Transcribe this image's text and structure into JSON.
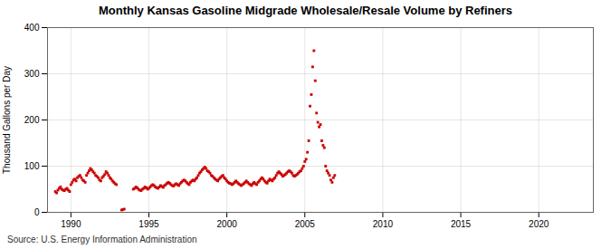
{
  "chart_data": {
    "type": "scatter",
    "title": "Monthly Kansas Gasoline Midgrade Wholesale/Resale Volume by Refiners",
    "ylabel": "Thousand Gallons per Day",
    "annotation": "Source: U.S. Energy Information Administration",
    "color": "#cc0000",
    "marker": "square",
    "grid": true,
    "xlim": [
      1988.5,
      2023.5
    ],
    "ylim": [
      0,
      400
    ],
    "xticks": [
      1990,
      1995,
      2000,
      2005,
      2010,
      2015,
      2020
    ],
    "yticks": [
      0,
      100,
      200,
      300,
      400
    ],
    "x": [
      1989.0,
      1989.083,
      1989.167,
      1989.25,
      1989.333,
      1989.417,
      1989.5,
      1989.583,
      1989.667,
      1989.75,
      1989.833,
      1989.917,
      1990.0,
      1990.083,
      1990.167,
      1990.25,
      1990.333,
      1990.417,
      1990.5,
      1990.583,
      1990.667,
      1990.75,
      1990.833,
      1990.917,
      1991.0,
      1991.083,
      1991.167,
      1991.25,
      1991.333,
      1991.417,
      1991.5,
      1991.583,
      1991.667,
      1991.75,
      1991.833,
      1991.917,
      1992.0,
      1992.083,
      1992.167,
      1992.25,
      1992.333,
      1992.417,
      1992.5,
      1992.583,
      1992.667,
      1992.75,
      1992.833,
      1992.917,
      1993.25,
      1993.333,
      1993.417,
      1994.0,
      1994.083,
      1994.167,
      1994.25,
      1994.333,
      1994.417,
      1994.5,
      1994.583,
      1994.667,
      1994.75,
      1994.833,
      1994.917,
      1995.0,
      1995.083,
      1995.167,
      1995.25,
      1995.333,
      1995.417,
      1995.5,
      1995.583,
      1995.667,
      1995.75,
      1995.833,
      1995.917,
      1996.0,
      1996.083,
      1996.167,
      1996.25,
      1996.333,
      1996.417,
      1996.5,
      1996.583,
      1996.667,
      1996.75,
      1996.833,
      1996.917,
      1997.0,
      1997.083,
      1997.167,
      1997.25,
      1997.333,
      1997.417,
      1997.5,
      1997.583,
      1997.667,
      1997.75,
      1997.833,
      1997.917,
      1998.0,
      1998.083,
      1998.167,
      1998.25,
      1998.333,
      1998.417,
      1998.5,
      1998.583,
      1998.667,
      1998.75,
      1998.833,
      1998.917,
      1999.0,
      1999.083,
      1999.167,
      1999.25,
      1999.333,
      1999.417,
      1999.5,
      1999.583,
      1999.667,
      1999.75,
      1999.833,
      1999.917,
      2000.0,
      2000.083,
      2000.167,
      2000.25,
      2000.333,
      2000.417,
      2000.5,
      2000.583,
      2000.667,
      2000.75,
      2000.833,
      2000.917,
      2001.0,
      2001.083,
      2001.167,
      2001.25,
      2001.333,
      2001.417,
      2001.5,
      2001.583,
      2001.667,
      2001.75,
      2001.833,
      2001.917,
      2002.0,
      2002.083,
      2002.167,
      2002.25,
      2002.333,
      2002.417,
      2002.5,
      2002.583,
      2002.667,
      2002.75,
      2002.833,
      2002.917,
      2003.0,
      2003.083,
      2003.167,
      2003.25,
      2003.333,
      2003.417,
      2003.5,
      2003.583,
      2003.667,
      2003.75,
      2003.833,
      2003.917,
      2004.0,
      2004.083,
      2004.167,
      2004.25,
      2004.333,
      2004.417,
      2004.5,
      2004.583,
      2004.667,
      2004.75,
      2004.833,
      2004.917,
      2005.0,
      2005.083,
      2005.167,
      2005.25,
      2005.333,
      2005.417,
      2005.5,
      2005.583,
      2005.667,
      2005.75,
      2005.833,
      2005.917,
      2006.0,
      2006.083,
      2006.167,
      2006.25,
      2006.333,
      2006.417,
      2006.5,
      2006.583,
      2006.667,
      2006.75,
      2006.833,
      2006.917
    ],
    "values": [
      45,
      42,
      48,
      52,
      55,
      50,
      48,
      47,
      50,
      52,
      48,
      45,
      60,
      65,
      70,
      72,
      68,
      75,
      78,
      80,
      75,
      70,
      68,
      65,
      80,
      85,
      90,
      95,
      92,
      88,
      85,
      80,
      78,
      75,
      70,
      68,
      75,
      78,
      82,
      88,
      85,
      80,
      75,
      72,
      68,
      65,
      62,
      60,
      5,
      6,
      7,
      50,
      52,
      55,
      53,
      50,
      48,
      47,
      50,
      52,
      55,
      53,
      50,
      52,
      55,
      58,
      60,
      58,
      55,
      53,
      52,
      55,
      58,
      56,
      54,
      58,
      60,
      63,
      65,
      63,
      60,
      58,
      57,
      60,
      62,
      60,
      58,
      62,
      65,
      68,
      70,
      68,
      65,
      62,
      60,
      65,
      68,
      70,
      68,
      72,
      75,
      80,
      85,
      88,
      92,
      95,
      98,
      95,
      90,
      88,
      85,
      80,
      78,
      75,
      72,
      70,
      68,
      72,
      75,
      78,
      80,
      75,
      72,
      68,
      65,
      63,
      62,
      60,
      62,
      65,
      68,
      65,
      62,
      60,
      58,
      60,
      62,
      65,
      68,
      65,
      62,
      60,
      58,
      62,
      65,
      62,
      60,
      65,
      68,
      72,
      75,
      72,
      68,
      65,
      63,
      68,
      72,
      70,
      68,
      72,
      75,
      80,
      85,
      88,
      85,
      82,
      78,
      80,
      82,
      85,
      88,
      90,
      88,
      85,
      80,
      78,
      80,
      82,
      85,
      88,
      90,
      95,
      100,
      110,
      115,
      130,
      155,
      230,
      255,
      315,
      350,
      285,
      215,
      195,
      185,
      190,
      155,
      145,
      140,
      100,
      90,
      85,
      80,
      70,
      65,
      75,
      80
    ]
  }
}
